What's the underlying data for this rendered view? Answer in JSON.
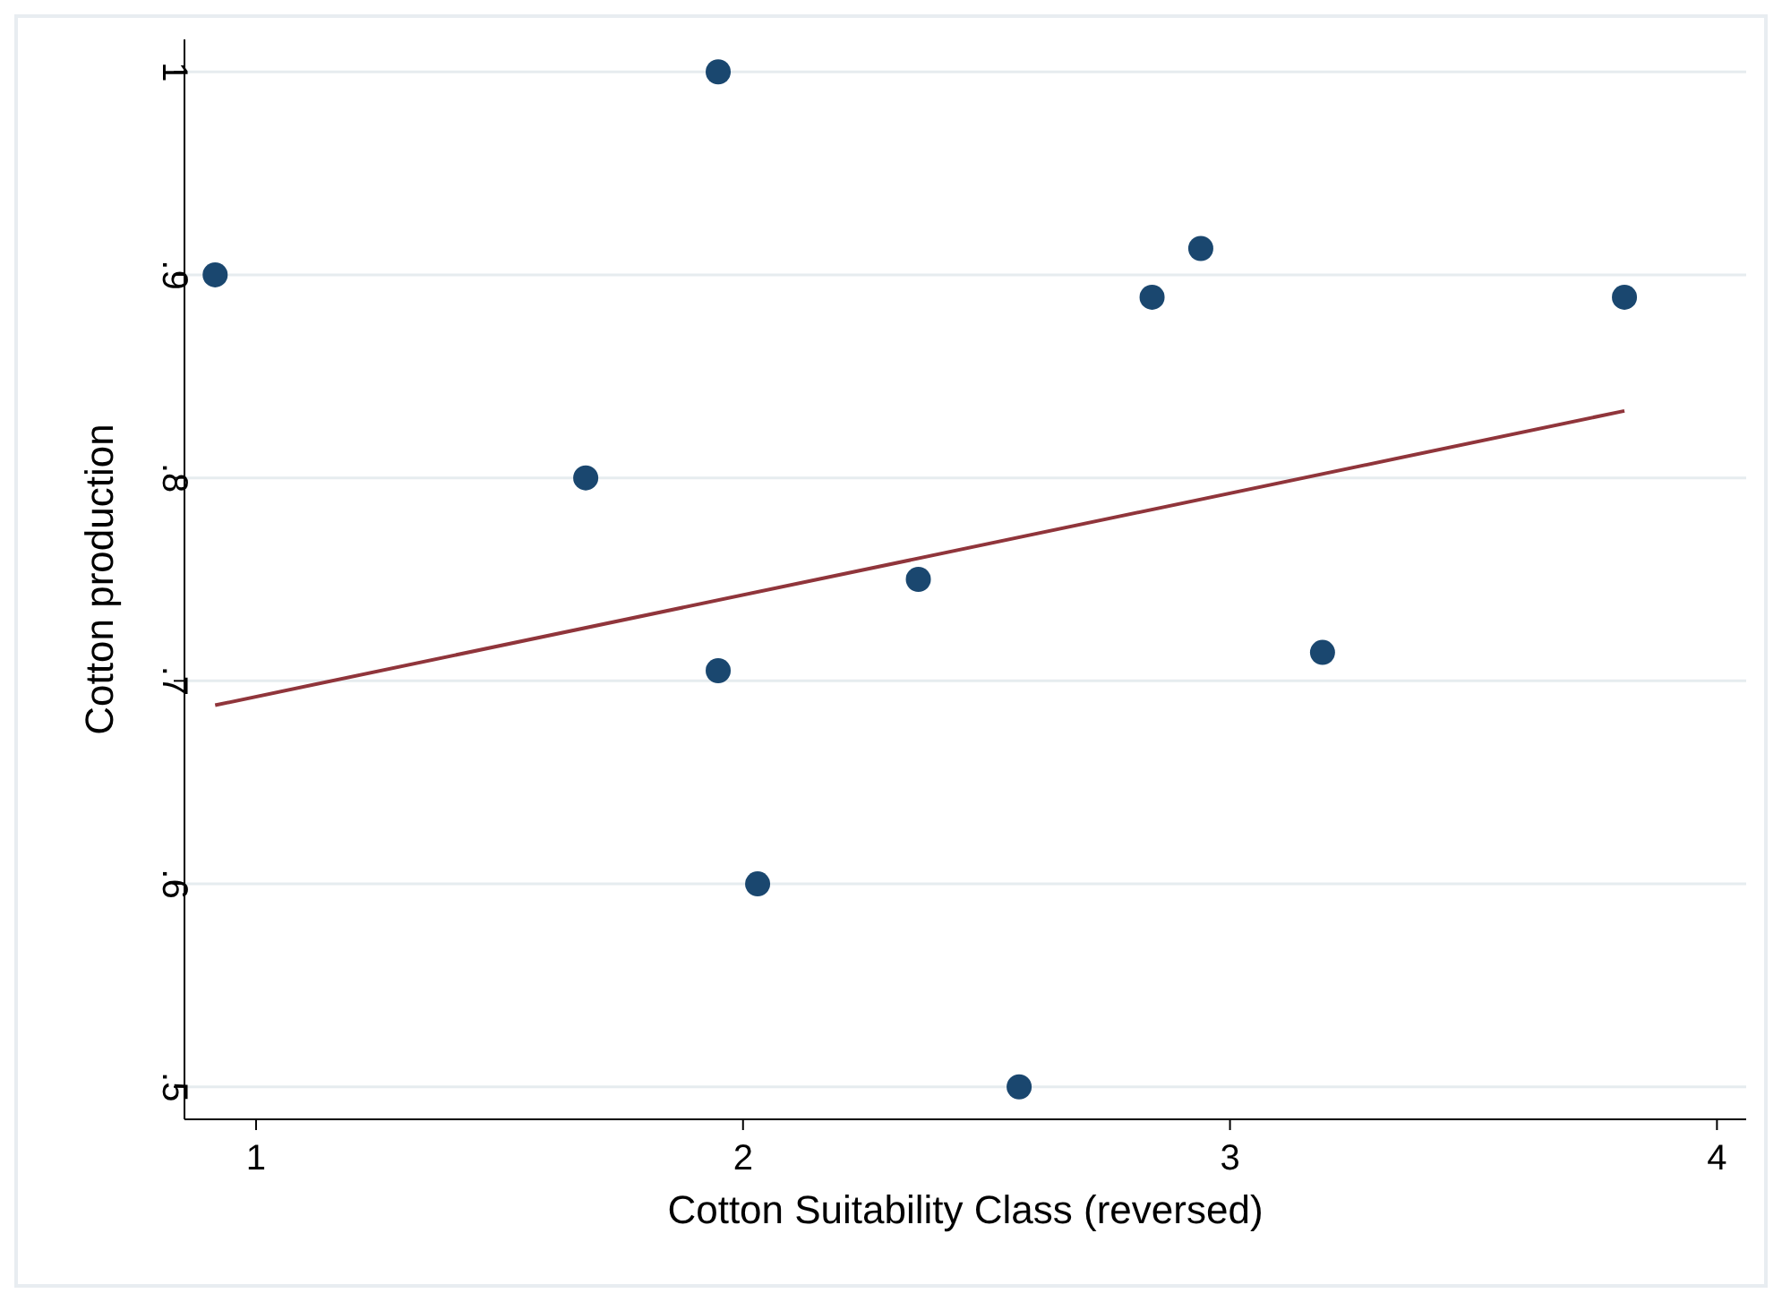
{
  "chart_data": {
    "type": "scatter",
    "xlabel": "Cotton Suitability Class (reversed)",
    "ylabel": "Cotton production",
    "xlim": [
      0.853,
      4.06
    ],
    "ylim": [
      0.484,
      1.016
    ],
    "xticks": [
      1,
      2,
      3,
      4
    ],
    "yticks": [
      {
        "value": 0.5,
        "label": ".5"
      },
      {
        "value": 0.6,
        "label": ".6"
      },
      {
        "value": 0.7,
        "label": ".7"
      },
      {
        "value": 0.8,
        "label": ".8"
      },
      {
        "value": 0.9,
        "label": ".9"
      },
      {
        "value": 1,
        "label": "1"
      }
    ],
    "grid": "y",
    "marker": "circle",
    "series": [
      {
        "color": "#1a476f",
        "x": [
          0.916,
          1.949,
          1.677,
          2.36,
          1.949,
          2.03,
          2.567,
          2.84,
          2.94,
          3.19,
          3.81
        ],
        "values": [
          0.9,
          1.0,
          0.8,
          0.75,
          0.705,
          0.6,
          0.5,
          0.889,
          0.913,
          0.714,
          0.889
        ]
      },
      {
        "type": "line",
        "marker": "none",
        "color": "#90353b",
        "x": [
          0.916,
          3.81
        ],
        "values": [
          0.688,
          0.833
        ]
      }
    ]
  }
}
